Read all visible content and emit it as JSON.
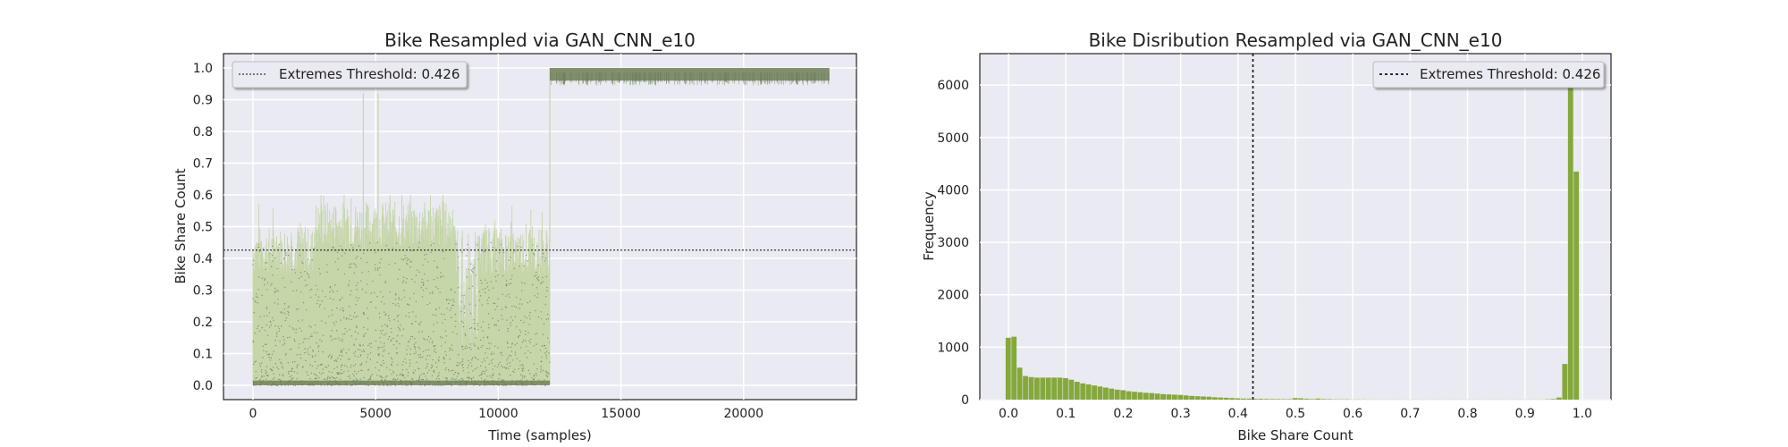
{
  "chart_data": [
    {
      "type": "line",
      "title": "Bike Resampled via GAN_CNN_e10",
      "xlabel": "Time (samples)",
      "ylabel": "Bike Share Count",
      "xlim": [
        -1200,
        24600
      ],
      "ylim": [
        -0.045,
        1.045
      ],
      "xticks": [
        0,
        5000,
        10000,
        15000,
        20000
      ],
      "yticks": [
        0.0,
        0.1,
        0.2,
        0.3,
        0.4,
        0.5,
        0.6,
        0.7,
        0.8,
        0.9,
        1.0
      ],
      "grid": true,
      "legend": {
        "placement": "top-left",
        "entries": [
          "Extremes Threshold: 0.426"
        ]
      },
      "threshold": 0.426,
      "series": [
        {
          "color": "#c5d6a8",
          "marker_color": "#6e7f58",
          "segments": [
            {
              "x": [
                0,
                12100
              ],
              "low": 0.0,
              "typical_high": [
                0.35,
                0.5
              ],
              "peak": 0.6
            },
            {
              "x": [
                12100,
                23500
              ],
              "low": 0.96,
              "high": 1.0,
              "typical": 0.985
            }
          ],
          "spikes": [
            {
              "x": 4500,
              "y": 0.92
            },
            {
              "x": 5100,
              "y": 0.92
            }
          ],
          "dip_region": {
            "x": [
              8400,
              9200
            ],
            "low": 0.12
          }
        }
      ]
    },
    {
      "type": "bar",
      "title": "Bike Disribution Resampled via GAN_CNN_e10",
      "xlabel": "Bike Share Count",
      "ylabel": "Frequency",
      "xlim": [
        -0.05,
        1.05
      ],
      "ylim": [
        0,
        6600
      ],
      "xticks": [
        0.0,
        0.1,
        0.2,
        0.3,
        0.4,
        0.5,
        0.6,
        0.7,
        0.8,
        0.9,
        1.0
      ],
      "yticks": [
        0,
        1000,
        2000,
        3000,
        4000,
        5000,
        6000
      ],
      "grid": true,
      "legend": {
        "placement": "top-right",
        "entries": [
          "Extremes Threshold: 0.426"
        ]
      },
      "threshold": 0.426,
      "bar_color": "#85a83c",
      "bin_width": 0.01,
      "bins": [
        0.0,
        0.01,
        0.02,
        0.03,
        0.04,
        0.05,
        0.06,
        0.07,
        0.08,
        0.09,
        0.1,
        0.11,
        0.12,
        0.13,
        0.14,
        0.15,
        0.16,
        0.17,
        0.18,
        0.19,
        0.2,
        0.21,
        0.22,
        0.23,
        0.24,
        0.25,
        0.26,
        0.27,
        0.28,
        0.29,
        0.3,
        0.31,
        0.32,
        0.33,
        0.34,
        0.35,
        0.36,
        0.37,
        0.38,
        0.39,
        0.4,
        0.41,
        0.42,
        0.43,
        0.44,
        0.45,
        0.46,
        0.47,
        0.48,
        0.49,
        0.5,
        0.51,
        0.52,
        0.53,
        0.54,
        0.55,
        0.56,
        0.57,
        0.58,
        0.59,
        0.6,
        0.61,
        0.62,
        0.63,
        0.64,
        0.65,
        0.66,
        0.67,
        0.68,
        0.69,
        0.7,
        0.71,
        0.72,
        0.73,
        0.74,
        0.75,
        0.76,
        0.77,
        0.78,
        0.79,
        0.8,
        0.81,
        0.82,
        0.83,
        0.84,
        0.85,
        0.86,
        0.87,
        0.88,
        0.89,
        0.9,
        0.91,
        0.92,
        0.93,
        0.94,
        0.95,
        0.96,
        0.97,
        0.98,
        0.99
      ],
      "values": [
        1180,
        1200,
        610,
        450,
        430,
        420,
        420,
        420,
        420,
        420,
        410,
        380,
        340,
        310,
        290,
        270,
        250,
        230,
        210,
        190,
        180,
        160,
        150,
        140,
        130,
        125,
        115,
        105,
        100,
        95,
        90,
        80,
        70,
        65,
        60,
        55,
        45,
        40,
        35,
        30,
        25,
        20,
        20,
        15,
        15,
        12,
        10,
        10,
        8,
        8,
        30,
        25,
        15,
        10,
        20,
        10,
        8,
        5,
        5,
        5,
        3,
        3,
        3,
        2,
        2,
        2,
        2,
        2,
        2,
        2,
        2,
        2,
        2,
        2,
        2,
        2,
        2,
        2,
        2,
        2,
        2,
        2,
        2,
        2,
        2,
        2,
        2,
        2,
        2,
        2,
        2,
        2,
        2,
        2,
        5,
        10,
        40,
        680,
        6000,
        4350
      ]
    }
  ]
}
